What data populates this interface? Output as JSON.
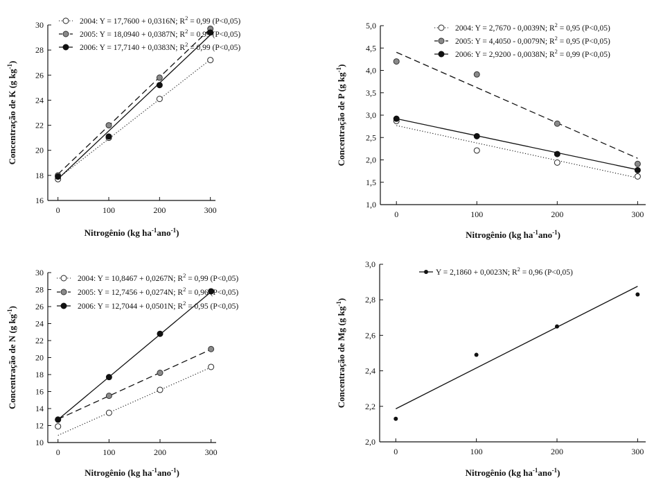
{
  "chart_data": [
    {
      "type": "scatter",
      "id": "k",
      "xlabel": "Nitrogênio (kg ha",
      "xlabel_sup1": "-1",
      "xlabel_mid": "ano",
      "xlabel_sup2": "-1",
      "xlabel_end": ")",
      "ylabel": "Concentração de K (g kg",
      "ylabel_sup": "-1",
      "ylabel_end": ")",
      "xlim": [
        -20,
        310
      ],
      "ylim": [
        16,
        30
      ],
      "xticks": [
        0,
        100,
        200,
        300
      ],
      "yticks": [
        16,
        18,
        20,
        22,
        24,
        26,
        28,
        30
      ],
      "decimal_comma": false,
      "legend_position": "top-left",
      "x": [
        0,
        100,
        200,
        300
      ],
      "series": [
        {
          "name": "2004",
          "eq": "Y = 17,7600 + 0,0316N; R",
          "r2": "= 0,99 (P<0,05)",
          "values": [
            17.7,
            21.0,
            24.1,
            27.2
          ],
          "fit": [
            17.76,
            0.0316
          ],
          "marker": "open",
          "line": "dotted"
        },
        {
          "name": "2005",
          "eq": "Y = 18,0940 + 0,0387N; R",
          "r2": "= 0,99 (P<0,05)",
          "values": [
            18.0,
            22.0,
            25.8,
            29.7
          ],
          "fit": [
            18.094,
            0.0387
          ],
          "marker": "gray",
          "line": "dashed"
        },
        {
          "name": "2006",
          "eq": "Y = 17,7140 + 0,0383N; R",
          "r2": "= 0,99 (P<0,05)",
          "values": [
            17.9,
            21.1,
            25.2,
            29.4
          ],
          "fit": [
            17.714,
            0.0383
          ],
          "marker": "filled",
          "line": "solid"
        }
      ]
    },
    {
      "type": "scatter",
      "id": "p",
      "xlabel": "Nitrogênio (kg ha",
      "xlabel_sup1": "-1",
      "xlabel_mid": "ano",
      "xlabel_sup2": "-1",
      "xlabel_end": ")",
      "ylabel": "Concentração de P (g kg",
      "ylabel_sup": "-1",
      "ylabel_end": ")",
      "xlim": [
        -20,
        310
      ],
      "ylim": [
        1.0,
        5.0
      ],
      "xticks": [
        0,
        100,
        200,
        300
      ],
      "yticks": [
        1.0,
        1.5,
        2.0,
        2.5,
        3.0,
        3.5,
        4.0,
        4.5,
        5.0
      ],
      "decimal_comma": true,
      "legend_position": "top-right",
      "x": [
        0,
        100,
        200,
        300
      ],
      "series": [
        {
          "name": "2004",
          "eq": "Y = 2,7670 - 0,0039N; R",
          "r2": "= 0,95 (P<0,05)",
          "values": [
            2.87,
            2.21,
            1.94,
            1.63
          ],
          "fit": [
            2.767,
            -0.0039
          ],
          "marker": "open",
          "line": "dotted"
        },
        {
          "name": "2005",
          "eq": "Y = 4,4050 - 0,0079N; R",
          "r2": "= 0,95 (P<0,05)",
          "values": [
            4.2,
            3.91,
            2.81,
            1.91
          ],
          "fit": [
            4.405,
            -0.0079
          ],
          "marker": "gray",
          "line": "dashed"
        },
        {
          "name": "2006",
          "eq": "Y = 2,9200 - 0,0038N; R",
          "r2": "= 0,99 (P<0,05)",
          "values": [
            2.92,
            2.53,
            2.13,
            1.77
          ],
          "fit": [
            2.92,
            -0.0038
          ],
          "marker": "filled",
          "line": "solid"
        }
      ]
    },
    {
      "type": "scatter",
      "id": "n",
      "xlabel": "Nitrogênio (kg ha",
      "xlabel_sup1": "-1",
      "xlabel_mid": "ano",
      "xlabel_sup2": "-1",
      "xlabel_end": ")",
      "ylabel": "Concentração de N (g kg",
      "ylabel_sup": "-1",
      "ylabel_end": ")",
      "xlim": [
        -20,
        310
      ],
      "ylim": [
        10,
        30
      ],
      "xticks": [
        0,
        100,
        200,
        300
      ],
      "yticks": [
        10,
        12,
        14,
        16,
        18,
        20,
        22,
        24,
        26,
        28,
        30
      ],
      "decimal_comma": false,
      "legend_position": "top-left",
      "x": [
        0,
        100,
        200,
        300
      ],
      "series": [
        {
          "name": "2004",
          "eq": "Y = 10,8467 + 0,0267N; R",
          "r2": "= 0,99 (P<0,05)",
          "values": [
            11.9,
            13.5,
            16.2,
            18.9
          ],
          "fit": [
            10.8467,
            0.0267
          ],
          "marker": "open",
          "line": "dotted"
        },
        {
          "name": "2005",
          "eq": "Y = 12,7456 + 0,0274N; R",
          "r2": "= 0,96 (P<0,05)",
          "values": [
            12.7,
            15.5,
            18.2,
            21.0
          ],
          "fit": [
            12.7456,
            0.0274
          ],
          "marker": "gray",
          "line": "dashed"
        },
        {
          "name": "2006",
          "eq": "Y = 12,7044 + 0,0501N; R",
          "r2": "= 0,95 (P<0,05)",
          "values": [
            12.7,
            17.7,
            22.8,
            27.8
          ],
          "fit": [
            12.7044,
            0.0501
          ],
          "marker": "filled",
          "line": "solid"
        }
      ]
    },
    {
      "type": "scatter",
      "id": "mg",
      "xlabel": "Nitrogênio (kg ha",
      "xlabel_sup1": "-1",
      "xlabel_mid": "ano",
      "xlabel_sup2": "-1",
      "xlabel_end": ")",
      "ylabel": "Concentração de Mg (g kg",
      "ylabel_sup": "-1",
      "ylabel_end": ")",
      "xlim": [
        -20,
        310
      ],
      "ylim": [
        2.0,
        3.0
      ],
      "xticks": [
        0,
        100,
        200,
        300
      ],
      "yticks": [
        2.0,
        2.2,
        2.4,
        2.6,
        2.8,
        3.0
      ],
      "decimal_comma": true,
      "legend_position": "top-center",
      "x": [
        0,
        100,
        200,
        300
      ],
      "series": [
        {
          "name": "",
          "eq": "Y = 2,1860 + 0,0023N; R",
          "r2": "= 0,96 (P<0,05)",
          "values": [
            2.13,
            2.49,
            2.65,
            2.83
          ],
          "fit": [
            2.186,
            0.0023
          ],
          "marker": "filled-small",
          "line": "solid"
        }
      ]
    }
  ]
}
